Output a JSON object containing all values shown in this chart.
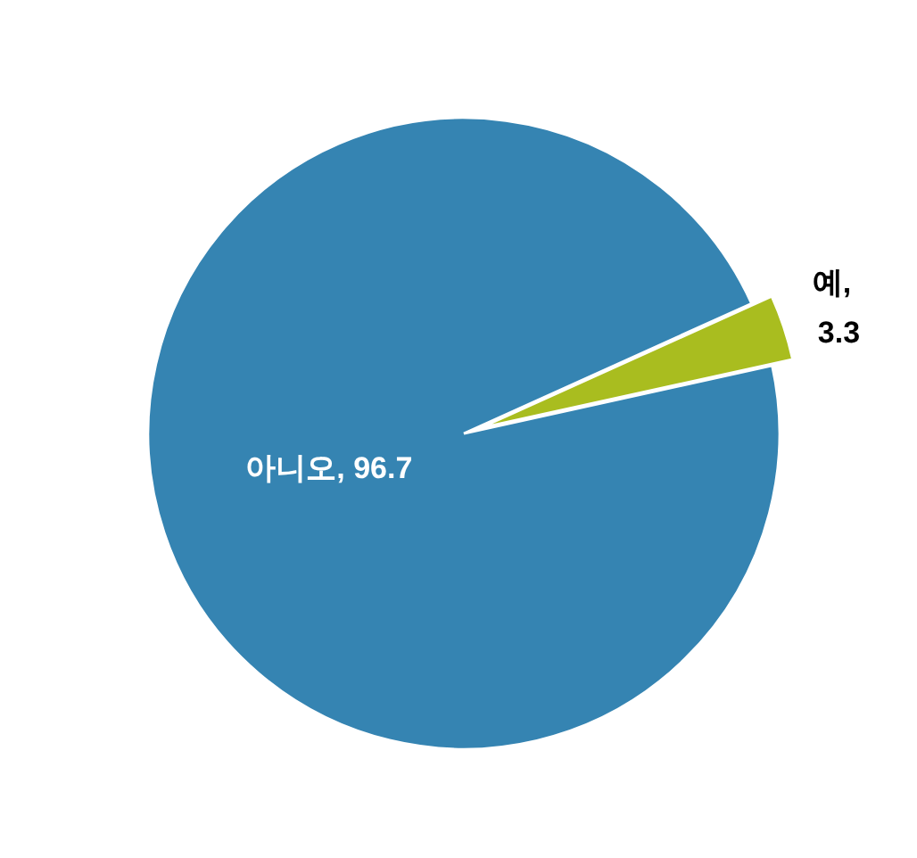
{
  "chart_data": {
    "type": "pie",
    "categories": [
      "아니오",
      "예"
    ],
    "values": [
      96.7,
      3.3
    ],
    "value_labels": [
      ", 96.7",
      ", 3.3"
    ],
    "colors": [
      "#3584b2",
      "#a9bd1f"
    ]
  }
}
